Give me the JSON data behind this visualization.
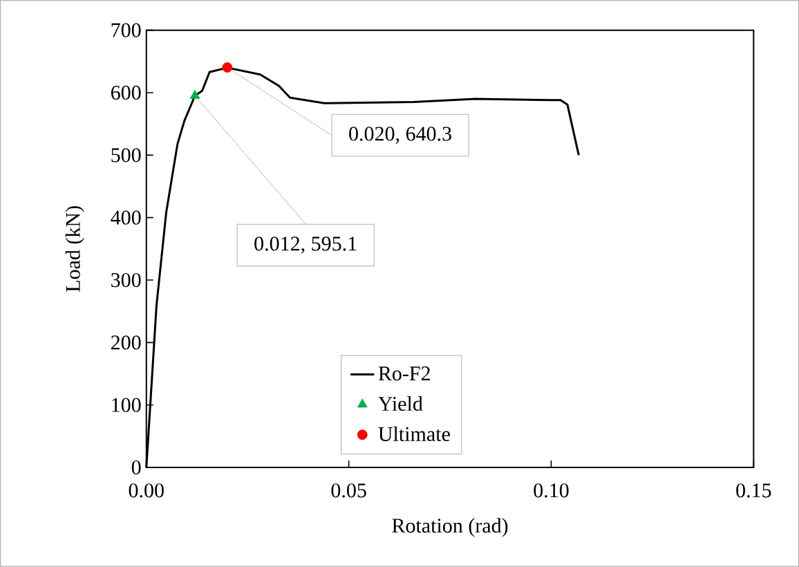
{
  "chart_data": {
    "type": "line",
    "xlabel": "Rotation (rad)",
    "ylabel": "Load (kN)",
    "xlim": [
      0,
      0.15
    ],
    "xticks": [
      {
        "value": 0,
        "label": "0.00"
      },
      0.05,
      {
        "value": 0.1,
        "label": "0.10"
      },
      0.15
    ],
    "ylim": [
      0,
      700
    ],
    "yticks": [
      0,
      100,
      200,
      300,
      400,
      500,
      600,
      700
    ],
    "grid": false,
    "legend": "bottom",
    "series": [
      {
        "name": "Ro-F2",
        "color": "#000000",
        "marker": "none",
        "x": [
          0,
          0.0025,
          0.0049,
          0.0077,
          0.0094,
          0.012,
          0.0138,
          0.0156,
          0.02,
          0.0281,
          0.0327,
          0.0355,
          0.044,
          0.066,
          0.0813,
          0.1,
          0.1023,
          0.104,
          0.1068
        ],
        "values": [
          0,
          259,
          408,
          518,
          555,
          595,
          603,
          633,
          640,
          629,
          611,
          592,
          583,
          585,
          590,
          588,
          588,
          581,
          500
        ]
      },
      {
        "name": "Yield",
        "color": "#00b050",
        "type": "scatter",
        "marker": "triangle",
        "x": [
          0.012
        ],
        "values": [
          595.1
        ]
      },
      {
        "name": "Ultimate",
        "color": "#ff0000",
        "type": "scatter",
        "marker": "circle",
        "x": [
          0.02
        ],
        "values": [
          640.3
        ]
      }
    ],
    "annotations": [
      {
        "text": "0.020, 640.3",
        "x": 0.02,
        "y": 640.3
      },
      {
        "text": "0.012, 595.1",
        "x": 0.012,
        "y": 595.1
      }
    ]
  }
}
